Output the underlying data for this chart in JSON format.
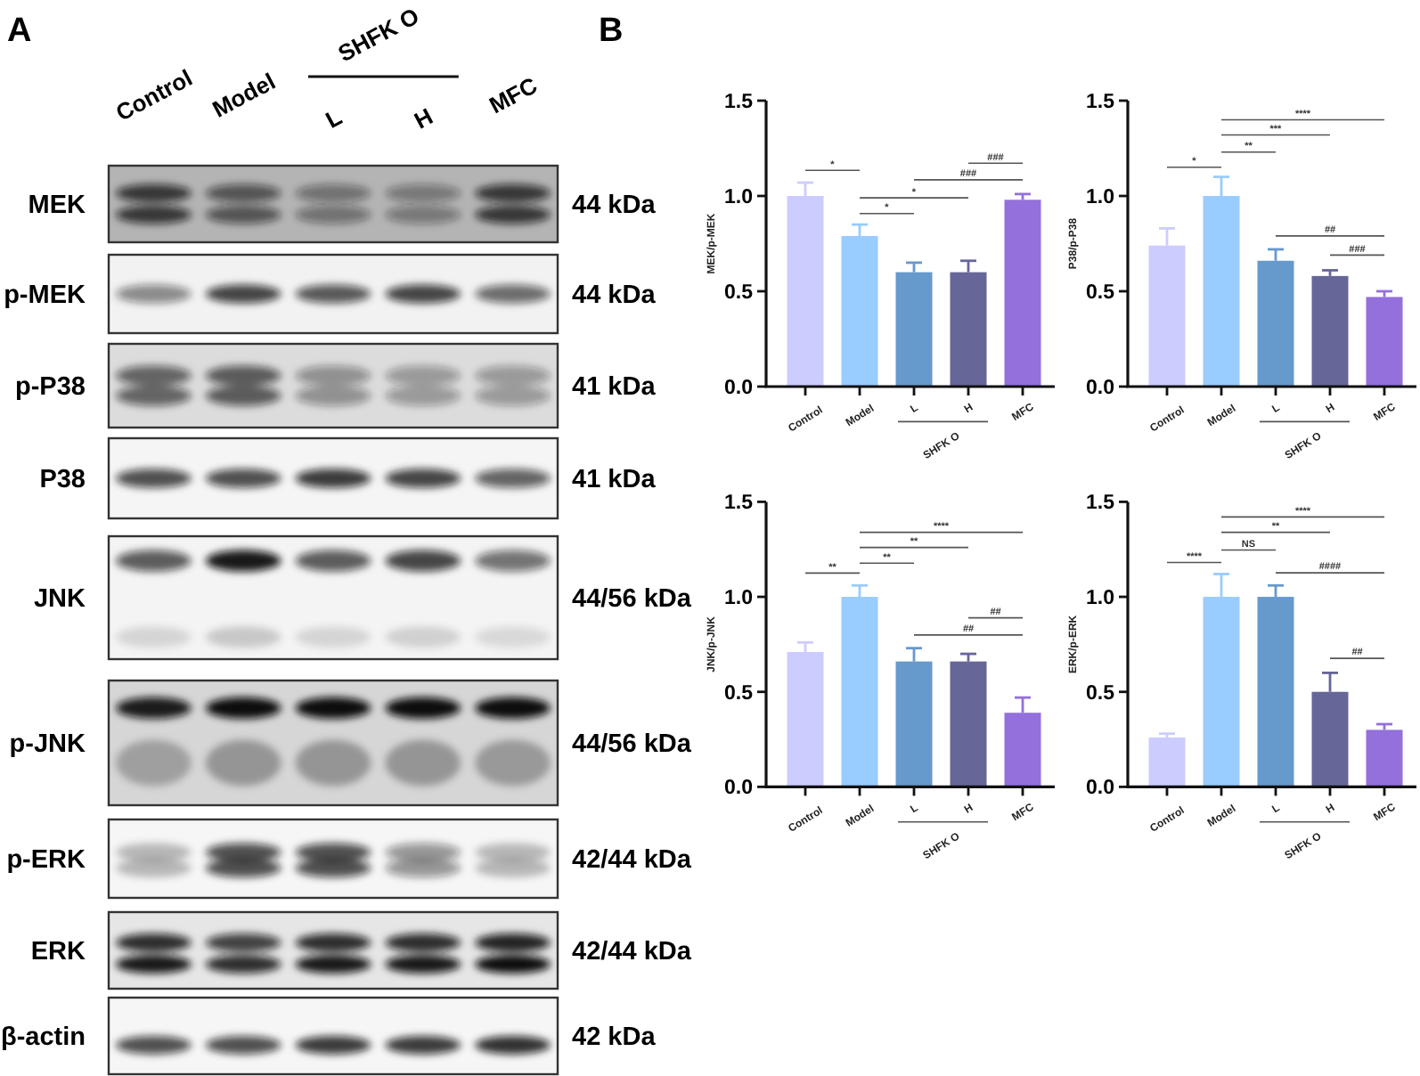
{
  "chart_data": [
    {
      "type": "other",
      "title": "A",
      "categories": [
        "Control",
        "Model",
        "L",
        "H",
        "MFC"
      ],
      "y_categories": [
        "MEK",
        "p-MEK",
        "p-P38",
        "P38",
        "JNK",
        "p-JNK",
        "p-ERK",
        "ERK",
        "β-actin"
      ],
      "y2_categories": [
        "44 kDa",
        "44 kDa",
        "41 kDa",
        "41 kDa",
        "44/56 kDa",
        "44/56 kDa",
        "42/44 kDa",
        "42/44 kDa",
        "42 kDa"
      ],
      "annotations": [
        "SHFK O"
      ]
    },
    {
      "type": "bar",
      "title": "B",
      "categories": [
        "Control",
        "Model",
        "L",
        "H",
        "MFC"
      ],
      "values": [
        1.0,
        0.79,
        0.6,
        0.6,
        0.98
      ],
      "colors": [
        "#ccccff",
        "#99ccff",
        "#6699cc",
        "#666699",
        "#9370db"
      ],
      "errors": [
        [
          1.0,
          1.07
        ],
        [
          0.79,
          0.85
        ],
        [
          0.6,
          0.65
        ],
        [
          0.6,
          0.66
        ],
        [
          0.98,
          1.01
        ]
      ],
      "ylabel": "MEK/p-MEK",
      "ylim": [
        0,
        1.5
      ],
      "yticks": [
        {
          "value": 0,
          "label": "0.0"
        },
        {
          "value": 0.5,
          "label": "0.5"
        },
        {
          "value": 1,
          "label": "1.0"
        },
        {
          "value": 1.5,
          "label": "1.5"
        }
      ],
      "annotations": [
        "*",
        "*",
        "*",
        "###",
        "###",
        "SHFK O"
      ]
    },
    {
      "type": "bar",
      "categories": [
        "Control",
        "Model",
        "L",
        "H",
        "MFC"
      ],
      "values": [
        0.74,
        1.0,
        0.66,
        0.58,
        0.47
      ],
      "colors": [
        "#ccccff",
        "#99ccff",
        "#6699cc",
        "#666699",
        "#9370db"
      ],
      "errors": [
        [
          0.74,
          0.83
        ],
        [
          1.0,
          1.1
        ],
        [
          0.66,
          0.72
        ],
        [
          0.58,
          0.61
        ],
        [
          0.47,
          0.5
        ]
      ],
      "ylabel": "P38/p-P38",
      "ylim": [
        0,
        1.5
      ],
      "yticks": [
        {
          "value": 0,
          "label": "0.0"
        },
        {
          "value": 0.5,
          "label": "0.5"
        },
        {
          "value": 1,
          "label": "1.0"
        },
        {
          "value": 1.5,
          "label": "1.5"
        }
      ],
      "annotations": [
        "*",
        "**",
        "***",
        "****",
        "##",
        "###",
        "SHFK O"
      ]
    },
    {
      "type": "bar",
      "categories": [
        "Control",
        "Model",
        "L",
        "H",
        "MFC"
      ],
      "values": [
        0.71,
        1.0,
        0.66,
        0.66,
        0.39
      ],
      "colors": [
        "#ccccff",
        "#99ccff",
        "#6699cc",
        "#666699",
        "#9370db"
      ],
      "errors": [
        [
          0.71,
          0.76
        ],
        [
          1.0,
          1.06
        ],
        [
          0.66,
          0.73
        ],
        [
          0.66,
          0.7
        ],
        [
          0.39,
          0.47
        ]
      ],
      "ylabel": "JNK/p-JNK",
      "ylim": [
        0,
        1.5
      ],
      "yticks": [
        {
          "value": 0,
          "label": "0.0"
        },
        {
          "value": 0.5,
          "label": "0.5"
        },
        {
          "value": 1,
          "label": "1.0"
        },
        {
          "value": 1.5,
          "label": "1.5"
        }
      ],
      "annotations": [
        "**",
        "**",
        "**",
        "****",
        "##",
        "##",
        "SHFK O"
      ]
    },
    {
      "type": "bar",
      "categories": [
        "Control",
        "Model",
        "L",
        "H",
        "MFC"
      ],
      "values": [
        0.26,
        1.0,
        1.0,
        0.5,
        0.3
      ],
      "colors": [
        "#ccccff",
        "#99ccff",
        "#6699cc",
        "#666699",
        "#9370db"
      ],
      "errors": [
        [
          0.26,
          0.28
        ],
        [
          1.0,
          1.12
        ],
        [
          1.0,
          1.06
        ],
        [
          0.5,
          0.6
        ],
        [
          0.3,
          0.33
        ]
      ],
      "ylabel": "ERK/p-ERK",
      "ylim": [
        0,
        1.5
      ],
      "yticks": [
        {
          "value": 0,
          "label": "0.0"
        },
        {
          "value": 0.5,
          "label": "0.5"
        },
        {
          "value": 1,
          "label": "1.0"
        },
        {
          "value": 1.5,
          "label": "1.5"
        }
      ],
      "annotations": [
        "****",
        "NS",
        "**",
        "****",
        "####",
        "##",
        "SHFK O"
      ]
    }
  ]
}
